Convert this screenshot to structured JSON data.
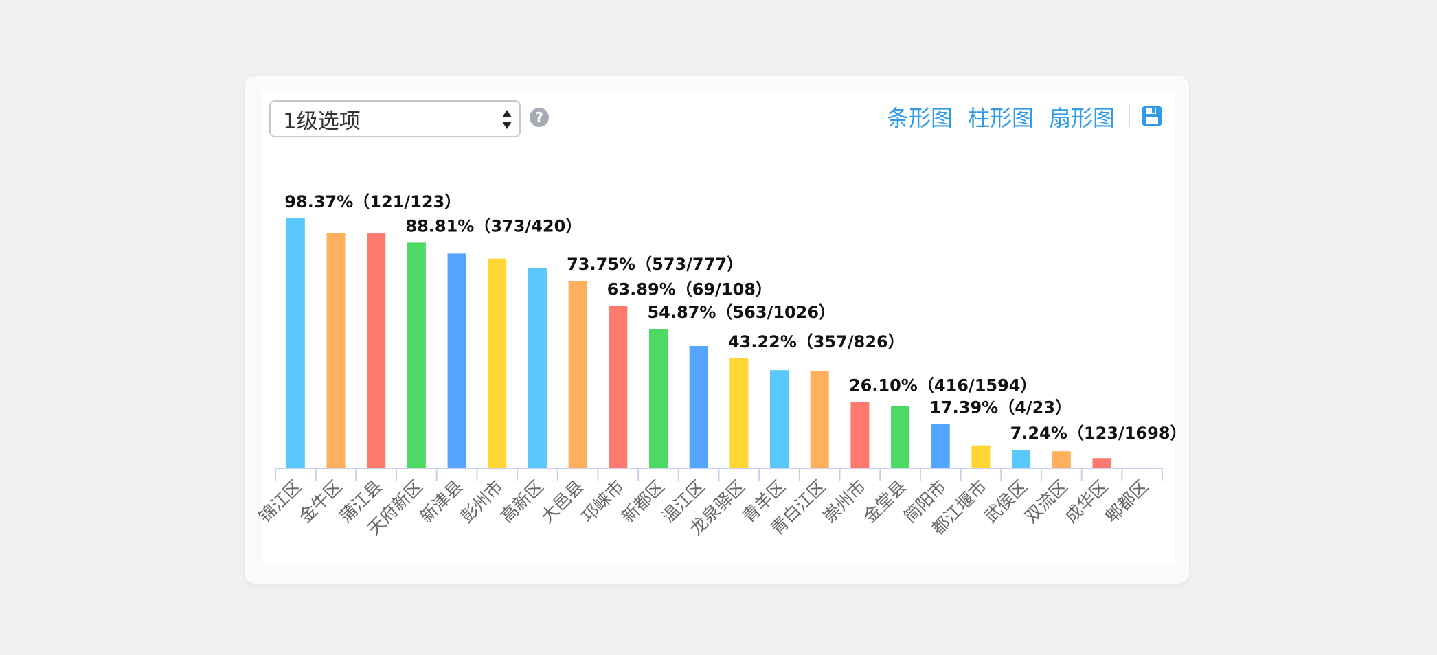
{
  "controls": {
    "select_value": "1级选项",
    "help_symbol": "?",
    "tool_bar_chart": "条形图",
    "tool_column_chart": "柱形图",
    "tool_pie_chart": "扇形图",
    "save_icon": "floppy-disk-icon"
  },
  "chart_data": {
    "type": "bar",
    "categories": [
      "锦江区",
      "金牛区",
      "蒲江县",
      "天府新区",
      "新津县",
      "彭州市",
      "高新区",
      "大邑县",
      "邛崃市",
      "新都区",
      "温江区",
      "龙泉驿区",
      "青羊区",
      "青白江区",
      "崇州市",
      "金堂县",
      "简阳市",
      "都江堰市",
      "武侯区",
      "双流区",
      "成华区",
      "郫都区"
    ],
    "values": [
      98.37,
      92.5,
      92.4,
      88.81,
      84.5,
      82.5,
      78.9,
      73.75,
      63.89,
      54.87,
      48.1,
      43.22,
      38.6,
      38.2,
      26.1,
      24.5,
      17.39,
      9.0,
      7.24,
      6.7,
      4.0,
      0
    ],
    "data_labels": [
      {
        "category": "锦江区",
        "text": "98.37%（121/123）"
      },
      {
        "category": "天府新区",
        "text": "88.81%（373/420）"
      },
      {
        "category": "大邑县",
        "text": "73.75%（573/777）"
      },
      {
        "category": "邛崃市",
        "text": "63.89%（69/108）"
      },
      {
        "category": "新都区",
        "text": "54.87%（563/1026）"
      },
      {
        "category": "龙泉驿区",
        "text": "43.22%（357/826）"
      },
      {
        "category": "崇州市",
        "text": "26.10%（416/1594）"
      },
      {
        "category": "简阳市",
        "text": "17.39%（4/23）"
      },
      {
        "category": "武侯区",
        "text": "7.24%（123/1698）"
      }
    ],
    "colors": [
      "#5ac8fa",
      "#ffb05c",
      "#ff7a6e",
      "#4cd964",
      "#53a5ff",
      "#ffd633"
    ],
    "ylim": [
      0,
      100
    ],
    "grid": false,
    "title": "",
    "xlabel": "",
    "ylabel": ""
  }
}
